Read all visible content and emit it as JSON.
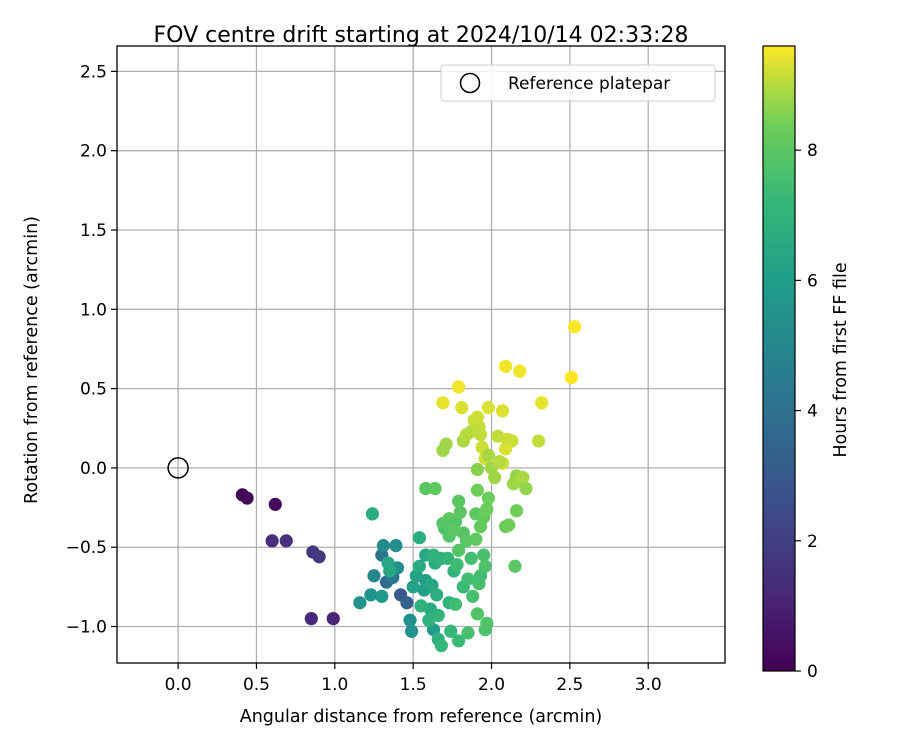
{
  "chart_data": {
    "type": "scatter",
    "title": "FOV centre drift starting at 2024/10/14 02:33:28",
    "xlabel": "Angular distance from reference (arcmin)",
    "ylabel": "Rotation from reference (arcmin)",
    "xlim": [
      -0.39,
      3.49
    ],
    "ylim": [
      -1.23,
      2.66
    ],
    "xticks": [
      "0.0",
      "0.5",
      "1.0",
      "1.5",
      "2.0",
      "2.5",
      "3.0"
    ],
    "yticks": [
      "−1.0",
      "−0.5",
      "0.0",
      "0.5",
      "1.0",
      "1.5",
      "2.0",
      "2.5"
    ],
    "grid": true,
    "legend": {
      "position": "top-right",
      "entries": [
        {
          "label": "Reference platepar",
          "marker": "open-circle"
        }
      ]
    },
    "reference": {
      "x": 0.0,
      "y": 0.0
    },
    "colorbar": {
      "label": "Hours from first FF file",
      "range": [
        0,
        9.6
      ],
      "ticks": [
        "0",
        "2",
        "4",
        "6",
        "8"
      ],
      "colormap": "viridis"
    },
    "points": [
      [
        0.41,
        -0.17,
        0.1
      ],
      [
        0.44,
        -0.19,
        0.2
      ],
      [
        0.62,
        -0.23,
        0.3
      ],
      [
        0.6,
        -0.46,
        1.4
      ],
      [
        0.69,
        -0.46,
        1.5
      ],
      [
        0.86,
        -0.53,
        1.7
      ],
      [
        0.9,
        -0.56,
        1.8
      ],
      [
        0.85,
        -0.95,
        1.2
      ],
      [
        0.99,
        -0.95,
        1.1
      ],
      [
        1.42,
        -0.8,
        3.0
      ],
      [
        1.46,
        -0.85,
        3.4
      ],
      [
        1.33,
        -0.72,
        3.8
      ],
      [
        1.3,
        -0.55,
        4.0
      ],
      [
        1.37,
        -0.69,
        4.3
      ],
      [
        1.25,
        -0.68,
        5.0
      ],
      [
        1.31,
        -0.49,
        5.2
      ],
      [
        1.39,
        -0.49,
        5.3
      ],
      [
        1.4,
        -0.63,
        5.3
      ],
      [
        1.16,
        -0.85,
        5.5
      ],
      [
        1.23,
        -0.8,
        5.6
      ],
      [
        1.3,
        -0.81,
        5.8
      ],
      [
        1.48,
        -0.96,
        5.4
      ],
      [
        1.49,
        -1.03,
        5.5
      ],
      [
        1.5,
        -0.75,
        6.2
      ],
      [
        1.52,
        -0.68,
        6.3
      ],
      [
        1.57,
        -0.77,
        6.1
      ],
      [
        1.61,
        -0.89,
        6.6
      ],
      [
        1.63,
        -1.02,
        6.0
      ],
      [
        1.66,
        -1.08,
        6.8
      ],
      [
        1.54,
        -0.62,
        6.6
      ],
      [
        1.58,
        -0.55,
        6.4
      ],
      [
        1.58,
        -0.71,
        6.2
      ],
      [
        1.62,
        -0.74,
        6.5
      ],
      [
        1.54,
        -0.44,
        6.7
      ],
      [
        1.34,
        -0.6,
        6.4
      ],
      [
        1.35,
        -0.65,
        6.5
      ],
      [
        1.64,
        -0.6,
        6.7
      ],
      [
        1.65,
        -0.8,
        6.7
      ],
      [
        1.68,
        -0.57,
        6.9
      ],
      [
        1.72,
        -0.57,
        7.1
      ],
      [
        1.76,
        -0.65,
        7.0
      ],
      [
        1.73,
        -0.85,
        7.0
      ],
      [
        1.66,
        -0.93,
        7.1
      ],
      [
        1.55,
        -0.87,
        6.9
      ],
      [
        1.6,
        -0.96,
        6.9
      ],
      [
        1.68,
        -1.12,
        7.2
      ],
      [
        1.79,
        -1.09,
        7.3
      ],
      [
        1.74,
        -1.03,
        7.2
      ],
      [
        1.78,
        -0.61,
        7.4
      ],
      [
        1.82,
        -0.75,
        7.3
      ],
      [
        1.85,
        -0.7,
        7.5
      ],
      [
        1.87,
        -0.57,
        7.5
      ],
      [
        1.88,
        -0.81,
        7.6
      ],
      [
        1.92,
        -0.73,
        7.6
      ],
      [
        1.93,
        -0.68,
        7.5
      ],
      [
        1.95,
        -0.55,
        7.6
      ],
      [
        1.96,
        -0.62,
        7.7
      ],
      [
        1.77,
        -0.86,
        7.4
      ],
      [
        1.85,
        -1.04,
        7.6
      ],
      [
        1.96,
        -1.02,
        7.7
      ],
      [
        1.97,
        -0.98,
        7.8
      ],
      [
        1.91,
        -0.92,
        7.8
      ],
      [
        1.24,
        -0.29,
        6.7
      ],
      [
        1.7,
        -0.38,
        7.7
      ],
      [
        1.73,
        -0.43,
        7.8
      ],
      [
        1.77,
        -0.34,
        7.9
      ],
      [
        1.8,
        -0.28,
        8.0
      ],
      [
        1.82,
        -0.41,
        7.9
      ],
      [
        1.84,
        -0.46,
        8.0
      ],
      [
        1.9,
        -0.45,
        8.1
      ],
      [
        1.9,
        -0.29,
        8.1
      ],
      [
        1.93,
        -0.37,
        8.2
      ],
      [
        1.95,
        -0.31,
        8.2
      ],
      [
        1.97,
        -0.26,
        8.3
      ],
      [
        1.98,
        -0.19,
        8.3
      ],
      [
        1.79,
        -0.21,
        8.0
      ],
      [
        1.79,
        -0.52,
        7.9
      ],
      [
        1.73,
        -0.32,
        8.1
      ],
      [
        1.76,
        -0.36,
        7.8
      ],
      [
        1.63,
        -0.55,
        6.9
      ],
      [
        1.58,
        -0.13,
        8.0
      ],
      [
        1.64,
        -0.13,
        8.1
      ],
      [
        1.69,
        -0.35,
        7.9
      ],
      [
        1.76,
        -0.39,
        8.0
      ],
      [
        2.09,
        -0.37,
        8.3
      ],
      [
        2.11,
        -0.36,
        8.4
      ],
      [
        2.15,
        -0.62,
        8.0
      ],
      [
        2.16,
        -0.27,
        8.4
      ],
      [
        1.91,
        -0.14,
        8.4
      ],
      [
        1.91,
        -0.01,
        8.6
      ],
      [
        1.69,
        0.11,
        8.8
      ],
      [
        1.71,
        0.15,
        8.8
      ],
      [
        1.82,
        0.17,
        8.9
      ],
      [
        1.84,
        0.21,
        9.0
      ],
      [
        1.87,
        0.23,
        9.0
      ],
      [
        1.9,
        0.25,
        9.0
      ],
      [
        1.89,
        0.3,
        9.1
      ],
      [
        1.92,
        0.26,
        9.1
      ],
      [
        1.93,
        0.21,
        9.1
      ],
      [
        1.94,
        0.13,
        9.2
      ],
      [
        1.96,
        0.06,
        9.2
      ],
      [
        1.98,
        0.08,
        8.9
      ],
      [
        2.0,
        0.0,
        8.8
      ],
      [
        2.02,
        -0.06,
        8.8
      ],
      [
        2.04,
        0.2,
        9.1
      ],
      [
        2.07,
        0.03,
        9.2
      ],
      [
        2.09,
        0.12,
        9.3
      ],
      [
        2.1,
        0.18,
        9.2
      ],
      [
        2.13,
        0.17,
        9.2
      ],
      [
        2.14,
        -0.1,
        8.8
      ],
      [
        2.16,
        -0.05,
        8.7
      ],
      [
        2.18,
        -0.08,
        8.8
      ],
      [
        2.2,
        -0.06,
        8.9
      ],
      [
        2.22,
        -0.13,
        8.7
      ],
      [
        2.05,
        0.04,
        9.0
      ],
      [
        1.98,
        0.38,
        9.3
      ],
      [
        2.07,
        0.36,
        9.3
      ],
      [
        1.69,
        0.41,
        9.4
      ],
      [
        1.81,
        0.38,
        9.3
      ],
      [
        1.91,
        0.32,
        9.2
      ],
      [
        1.79,
        0.51,
        9.5
      ],
      [
        2.09,
        0.64,
        9.5
      ],
      [
        2.18,
        0.61,
        9.5
      ],
      [
        2.3,
        0.17,
        9.1
      ],
      [
        2.32,
        0.41,
        9.4
      ],
      [
        2.51,
        0.57,
        9.6
      ],
      [
        2.53,
        0.89,
        9.6
      ]
    ]
  }
}
